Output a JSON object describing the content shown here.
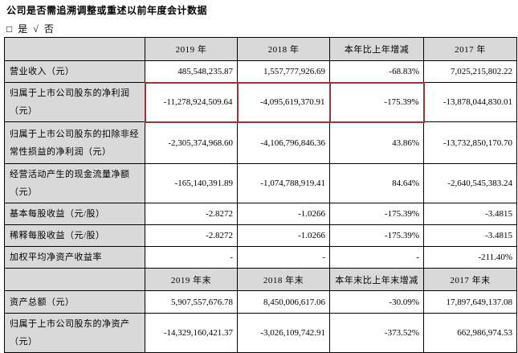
{
  "intro": {
    "question": "公司是否需追溯调整或重述以前年度会计数据",
    "answer": "□ 是 √ 否"
  },
  "colors": {
    "header_bg": "#d9d9d9",
    "highlight_border": "#943634",
    "grid": "#000000"
  },
  "table": {
    "annual_header": {
      "c0": "2019 年",
      "c1": "2018 年",
      "c2": "本年比上年增减",
      "c3": "2017 年"
    },
    "annual_rows": [
      {
        "label": "营业收入（元）",
        "values": [
          "485,548,235.87",
          "1,557,777,926.69",
          "-68.83%",
          "7,025,215,802.22"
        ],
        "highlighted_columns": []
      },
      {
        "label": "归属于上市公司股东的净利润（元）",
        "values": [
          "-11,278,924,509.64",
          "-4,095,619,370.91",
          "-175.39%",
          "-13,878,044,830.01"
        ],
        "highlighted_columns": [
          0,
          1,
          2
        ]
      },
      {
        "label": "归属于上市公司股东的扣除非经常性损益的净利润（元）",
        "values": [
          "-2,305,374,968.60",
          "-4,106,796,846.36",
          "43.86%",
          "-13,732,850,170.70"
        ],
        "highlighted_columns": []
      },
      {
        "label": "经营活动产生的现金流量净额（元）",
        "values": [
          "-165,140,391.89",
          "-1,074,788,919.41",
          "84.64%",
          "-2,640,545,383.24"
        ],
        "highlighted_columns": []
      },
      {
        "label": "基本每股收益（元/股）",
        "values": [
          "-2.8272",
          "-1.0266",
          "-175.39%",
          "-3.4815"
        ],
        "highlighted_columns": []
      },
      {
        "label": "稀释每股收益（元/股）",
        "values": [
          "-2.8272",
          "-1.0266",
          "-175.39%",
          "-3.4815"
        ],
        "highlighted_columns": []
      },
      {
        "label": "加权平均净资产收益率",
        "values": [
          "-",
          "-",
          "-",
          "-211.40%"
        ],
        "highlighted_columns": []
      }
    ],
    "eoy_header": {
      "c0": "2019 年末",
      "c1": "2018 年末",
      "c2": "本年末比上年末增减",
      "c3": "2017 年末"
    },
    "eoy_rows": [
      {
        "label": "资产总额（元）",
        "values": [
          "5,907,557,676.78",
          "8,450,006,617.06",
          "-30.09%",
          "17,897,649,137.08"
        ],
        "highlighted_columns": []
      },
      {
        "label": "归属于上市公司股东的净资产（元）",
        "values": [
          "-14,329,160,421.37",
          "-3,026,109,742.91",
          "-373.52%",
          "662,986,974.53"
        ],
        "highlighted_columns": []
      }
    ]
  }
}
